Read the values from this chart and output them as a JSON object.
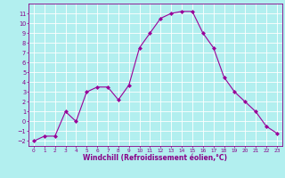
{
  "x": [
    0,
    1,
    2,
    3,
    4,
    5,
    6,
    7,
    8,
    9,
    10,
    11,
    12,
    13,
    14,
    15,
    16,
    17,
    18,
    19,
    20,
    21,
    22,
    23
  ],
  "y": [
    -2,
    -1.5,
    -1.5,
    1,
    0,
    3,
    3.5,
    3.5,
    2.2,
    3.7,
    7.5,
    9,
    10.5,
    11,
    11.2,
    11.2,
    9,
    7.5,
    4.5,
    3,
    2,
    1,
    -0.5,
    -1.2
  ],
  "line_color": "#990099",
  "marker": "D",
  "marker_size": 2,
  "bg_color": "#b2efef",
  "grid_color": "#ffffff",
  "xlabel": "Windchill (Refroidissement éolien,°C)",
  "xlim": [
    -0.5,
    23.5
  ],
  "ylim": [
    -2.5,
    12.0
  ],
  "yticks": [
    -2,
    -1,
    0,
    1,
    2,
    3,
    4,
    5,
    6,
    7,
    8,
    9,
    10,
    11
  ],
  "xticks": [
    0,
    1,
    2,
    3,
    4,
    5,
    6,
    7,
    8,
    9,
    10,
    11,
    12,
    13,
    14,
    15,
    16,
    17,
    18,
    19,
    20,
    21,
    22,
    23
  ],
  "tick_color": "#880088",
  "label_color": "#880088",
  "spine_color": "#880088"
}
